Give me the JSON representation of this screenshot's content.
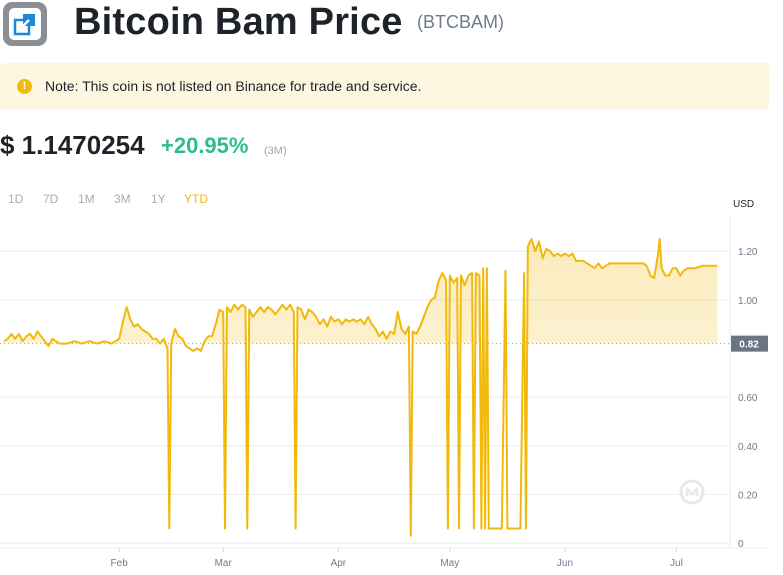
{
  "header": {
    "title": "Bitcoin Bam Price",
    "ticker": "(BTCBAM)"
  },
  "notice": {
    "text": "Note: This coin is not listed on Binance for trade and service.",
    "icon": "exclamation-circle-icon"
  },
  "price": {
    "value": "$ 1.1470254",
    "change": "+20.95%",
    "period": "(3M)"
  },
  "colors": {
    "accent": "#f0b90b",
    "positive": "#2ebd85",
    "grid": "#eaecef",
    "axis_text": "#707a8a",
    "notice_bg": "#fdf6e0"
  },
  "ranges": [
    {
      "label": "1D",
      "active": false
    },
    {
      "label": "7D",
      "active": false
    },
    {
      "label": "1M",
      "active": false
    },
    {
      "label": "3M",
      "active": false
    },
    {
      "label": "1Y",
      "active": false
    },
    {
      "label": "YTD",
      "active": true
    }
  ],
  "chart_data": {
    "type": "area",
    "currency_label": "USD",
    "yticks": [
      1.2,
      1.0,
      0.6,
      0.4,
      0.2,
      0
    ],
    "ytick_labels": [
      "1.20",
      "1.00",
      "0.60",
      "0.40",
      "0.20",
      "0"
    ],
    "ylim": [
      -0.02,
      1.32
    ],
    "reference_value": 0.82,
    "reference_label": "0.82",
    "xlim": [
      0,
      200
    ],
    "xtick_labels": [
      {
        "label": "Feb",
        "t": 31
      },
      {
        "label": "Mar",
        "t": 59
      },
      {
        "label": "Apr",
        "t": 90
      },
      {
        "label": "May",
        "t": 120
      },
      {
        "label": "Jun",
        "t": 151
      },
      {
        "label": "Jul",
        "t": 181
      }
    ],
    "points": [
      [
        0,
        0.83
      ],
      [
        1,
        0.84
      ],
      [
        2,
        0.86
      ],
      [
        3,
        0.84
      ],
      [
        4,
        0.86
      ],
      [
        5,
        0.83
      ],
      [
        6,
        0.85
      ],
      [
        7,
        0.86
      ],
      [
        8,
        0.84
      ],
      [
        9,
        0.87
      ],
      [
        10,
        0.85
      ],
      [
        11,
        0.83
      ],
      [
        12,
        0.81
      ],
      [
        13,
        0.84
      ],
      [
        14,
        0.83
      ],
      [
        15,
        0.82
      ],
      [
        17,
        0.82
      ],
      [
        19,
        0.83
      ],
      [
        21,
        0.82
      ],
      [
        23,
        0.83
      ],
      [
        25,
        0.82
      ],
      [
        27,
        0.83
      ],
      [
        29,
        0.82
      ],
      [
        31,
        0.84
      ],
      [
        32,
        0.91
      ],
      [
        33,
        0.97
      ],
      [
        34,
        0.92
      ],
      [
        35,
        0.89
      ],
      [
        36,
        0.9
      ],
      [
        37,
        0.88
      ],
      [
        38,
        0.87
      ],
      [
        39,
        0.86
      ],
      [
        40,
        0.84
      ],
      [
        41,
        0.84
      ],
      [
        42,
        0.82
      ],
      [
        43,
        0.84
      ],
      [
        44,
        0.8
      ],
      [
        44.5,
        0.06
      ],
      [
        45,
        0.82
      ],
      [
        46,
        0.88
      ],
      [
        47,
        0.85
      ],
      [
        48,
        0.84
      ],
      [
        49,
        0.81
      ],
      [
        50,
        0.8
      ],
      [
        51,
        0.79
      ],
      [
        52,
        0.8
      ],
      [
        53,
        0.79
      ],
      [
        54,
        0.83
      ],
      [
        55,
        0.85
      ],
      [
        56,
        0.85
      ],
      [
        57,
        0.9
      ],
      [
        58,
        0.96
      ],
      [
        59,
        0.95
      ],
      [
        59.5,
        0.06
      ],
      [
        60,
        0.97
      ],
      [
        61,
        0.95
      ],
      [
        62,
        0.98
      ],
      [
        63,
        0.96
      ],
      [
        64,
        0.98
      ],
      [
        65,
        0.97
      ],
      [
        65.5,
        0.06
      ],
      [
        66,
        0.96
      ],
      [
        67,
        0.93
      ],
      [
        68,
        0.95
      ],
      [
        69,
        0.97
      ],
      [
        70,
        0.95
      ],
      [
        71,
        0.97
      ],
      [
        72,
        0.96
      ],
      [
        73,
        0.94
      ],
      [
        74,
        0.96
      ],
      [
        75,
        0.98
      ],
      [
        76,
        0.96
      ],
      [
        77,
        0.98
      ],
      [
        78,
        0.95
      ],
      [
        78.5,
        0.06
      ],
      [
        79,
        0.97
      ],
      [
        80,
        0.96
      ],
      [
        81,
        0.92
      ],
      [
        82,
        0.96
      ],
      [
        83,
        0.95
      ],
      [
        84,
        0.93
      ],
      [
        85,
        0.9
      ],
      [
        86,
        0.92
      ],
      [
        87,
        0.89
      ],
      [
        88,
        0.93
      ],
      [
        89,
        0.91
      ],
      [
        90,
        0.92
      ],
      [
        91,
        0.9
      ],
      [
        92,
        0.92
      ],
      [
        93,
        0.91
      ],
      [
        94,
        0.92
      ],
      [
        95,
        0.91
      ],
      [
        96,
        0.92
      ],
      [
        97,
        0.9
      ],
      [
        98,
        0.93
      ],
      [
        99,
        0.9
      ],
      [
        100,
        0.88
      ],
      [
        101,
        0.85
      ],
      [
        102,
        0.87
      ],
      [
        103,
        0.84
      ],
      [
        104,
        0.87
      ],
      [
        105,
        0.86
      ],
      [
        106,
        0.95
      ],
      [
        107,
        0.88
      ],
      [
        108,
        0.86
      ],
      [
        109,
        0.89
      ],
      [
        109.5,
        0.03
      ],
      [
        110,
        0.87
      ],
      [
        111,
        0.86
      ],
      [
        112,
        0.89
      ],
      [
        113,
        0.93
      ],
      [
        114,
        0.97
      ],
      [
        115,
        1.0
      ],
      [
        116,
        1.01
      ],
      [
        117,
        1.08
      ],
      [
        118,
        1.11
      ],
      [
        119,
        1.08
      ],
      [
        119.5,
        0.06
      ],
      [
        120,
        1.1
      ],
      [
        121,
        1.07
      ],
      [
        122,
        1.09
      ],
      [
        122.5,
        0.06
      ],
      [
        123,
        1.1
      ],
      [
        124,
        1.06
      ],
      [
        125,
        1.1
      ],
      [
        126,
        1.11
      ],
      [
        126.5,
        0.06
      ],
      [
        127,
        1.11
      ],
      [
        128,
        1.1
      ],
      [
        128.5,
        0.06
      ],
      [
        129,
        1.13
      ],
      [
        129.5,
        0.06
      ],
      [
        130,
        1.13
      ],
      [
        130.5,
        0.06
      ],
      [
        131,
        0.06
      ],
      [
        132,
        0.06
      ],
      [
        133,
        0.06
      ],
      [
        134,
        0.06
      ],
      [
        135,
        1.12
      ],
      [
        135.5,
        0.06
      ],
      [
        136,
        0.06
      ],
      [
        137,
        0.06
      ],
      [
        138,
        0.06
      ],
      [
        139,
        0.06
      ],
      [
        140,
        1.11
      ],
      [
        140.5,
        0.06
      ],
      [
        141,
        1.22
      ],
      [
        142,
        1.25
      ],
      [
        143,
        1.2
      ],
      [
        144,
        1.24
      ],
      [
        145,
        1.17
      ],
      [
        146,
        1.21
      ],
      [
        147,
        1.2
      ],
      [
        148,
        1.18
      ],
      [
        149,
        1.19
      ],
      [
        150,
        1.18
      ],
      [
        151,
        1.19
      ],
      [
        152,
        1.18
      ],
      [
        153,
        1.19
      ],
      [
        154,
        1.16
      ],
      [
        155,
        1.16
      ],
      [
        156,
        1.16
      ],
      [
        157,
        1.15
      ],
      [
        158,
        1.14
      ],
      [
        159,
        1.13
      ],
      [
        160,
        1.15
      ],
      [
        161,
        1.13
      ],
      [
        162,
        1.14
      ],
      [
        163,
        1.15
      ],
      [
        164,
        1.15
      ],
      [
        166,
        1.15
      ],
      [
        168,
        1.15
      ],
      [
        170,
        1.15
      ],
      [
        172,
        1.15
      ],
      [
        173,
        1.14
      ],
      [
        174,
        1.1
      ],
      [
        175,
        1.09
      ],
      [
        176,
        1.18
      ],
      [
        176.5,
        1.25
      ],
      [
        177,
        1.13
      ],
      [
        178,
        1.1
      ],
      [
        179,
        1.1
      ],
      [
        180,
        1.13
      ],
      [
        181,
        1.13
      ],
      [
        182,
        1.1
      ],
      [
        183,
        1.12
      ],
      [
        184,
        1.13
      ],
      [
        186,
        1.13
      ],
      [
        188,
        1.14
      ],
      [
        190,
        1.14
      ],
      [
        192,
        1.14
      ]
    ]
  }
}
